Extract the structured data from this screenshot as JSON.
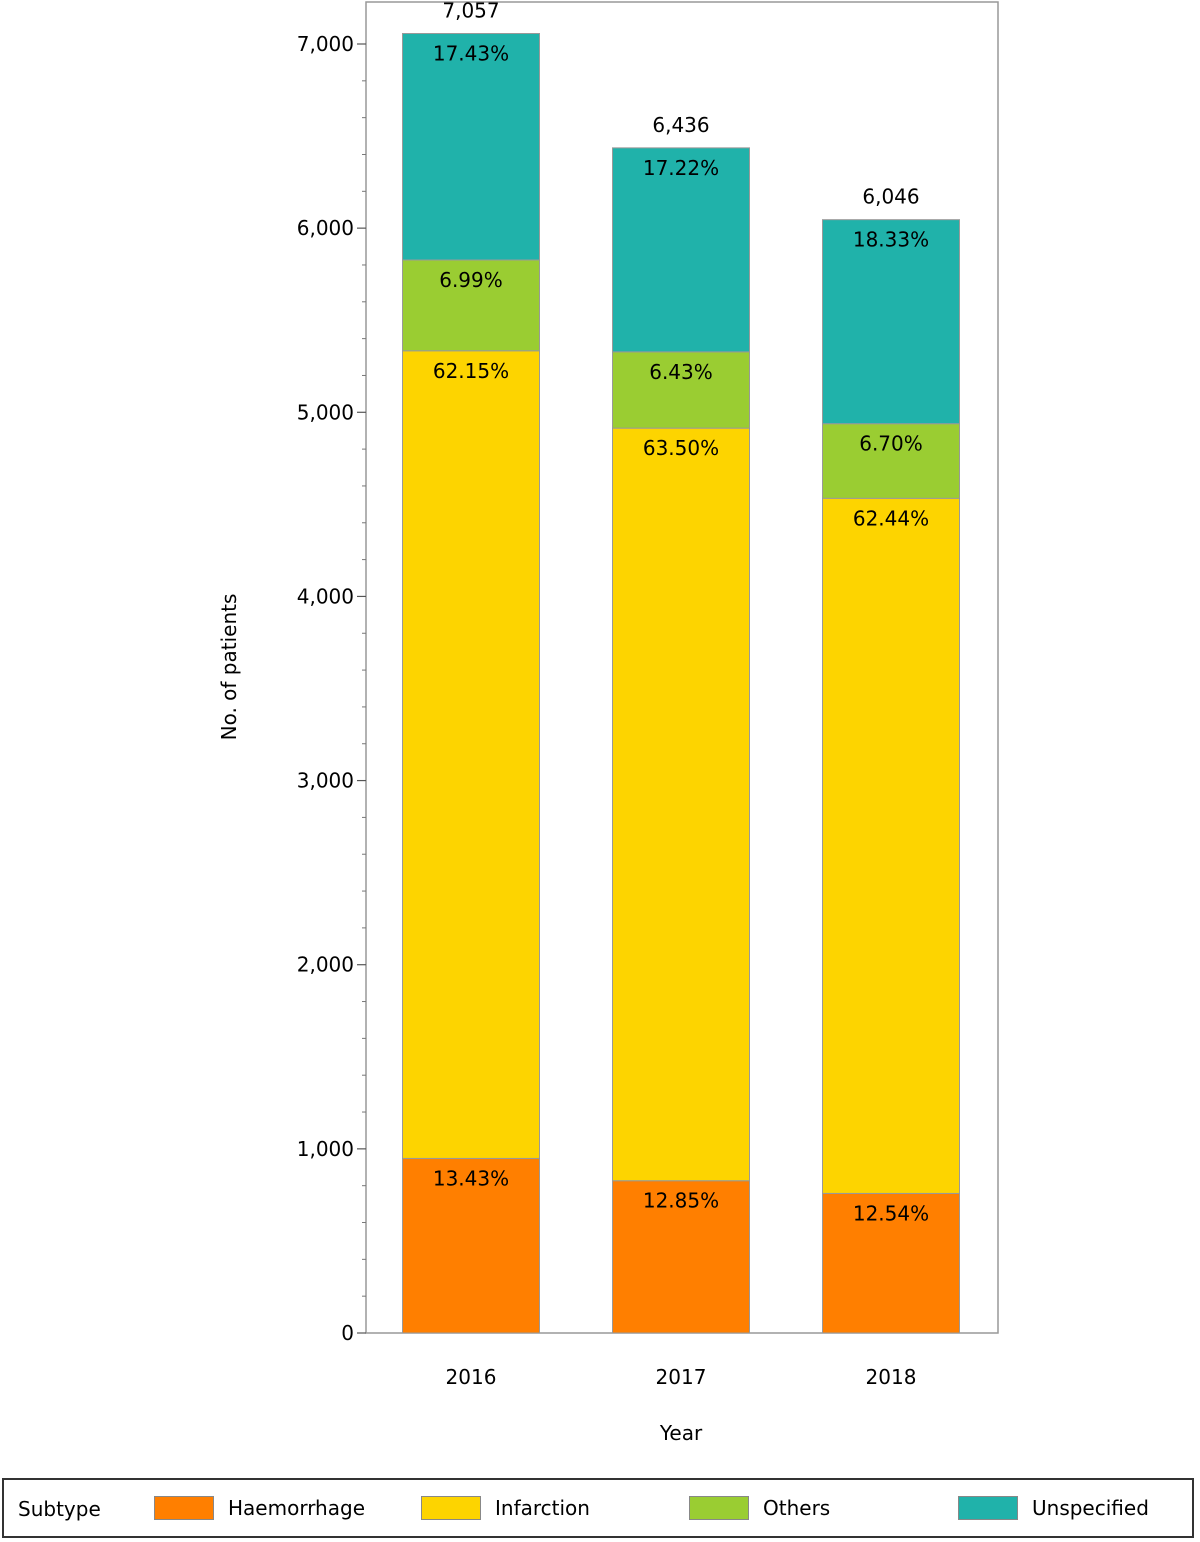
{
  "chart_data": {
    "type": "bar",
    "stacked": true,
    "title": "",
    "xlabel": "Year",
    "ylabel": "No. of patients",
    "ylim": [
      0,
      7000
    ],
    "yticks": [
      0,
      1000,
      2000,
      3000,
      4000,
      5000,
      6000,
      7000
    ],
    "ytick_labels": [
      "0",
      "1,000",
      "2,000",
      "3,000",
      "4,000",
      "5,000",
      "6,000",
      "7,000"
    ],
    "grid": false,
    "legend_placement": "bottom",
    "legend_title": "Subtype",
    "categories": [
      "2016",
      "2017",
      "2018"
    ],
    "totals": [
      7057,
      6436,
      6046
    ],
    "total_labels": [
      "7,057",
      "6,436",
      "6,046"
    ],
    "series": [
      {
        "name": "Haemorrhage",
        "color": "#ff7f00",
        "values": [
          948,
          827,
          758
        ],
        "labels": [
          "13.43%",
          "12.85%",
          "12.54%"
        ]
      },
      {
        "name": "Infarction",
        "color": "#fdd400",
        "values": [
          4386,
          4087,
          3775
        ],
        "labels": [
          "62.15%",
          "63.50%",
          "62.44%"
        ]
      },
      {
        "name": "Others",
        "color": "#9acd32",
        "values": [
          493,
          414,
          405
        ],
        "labels": [
          "6.99%",
          "6.43%",
          "6.70%"
        ]
      },
      {
        "name": "Unspecified",
        "color": "#20b2aa",
        "values": [
          1230,
          1108,
          1108
        ],
        "labels": [
          "17.43%",
          "17.22%",
          "18.33%"
        ]
      }
    ]
  }
}
